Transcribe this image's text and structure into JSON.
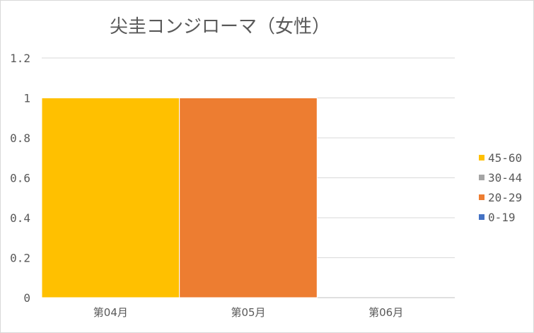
{
  "chart_data": {
    "type": "bar",
    "title": "尖圭コンジローマ（女性）",
    "categories": [
      "第04月",
      "第05月",
      "第06月"
    ],
    "series": [
      {
        "name": "45-60",
        "color": "#ffc000",
        "values": [
          1,
          0,
          0
        ]
      },
      {
        "name": "30-44",
        "color": "#a5a5a5",
        "values": [
          0,
          0,
          0
        ]
      },
      {
        "name": "20-29",
        "color": "#ed7d31",
        "values": [
          0,
          1,
          0
        ]
      },
      {
        "name": "0-19",
        "color": "#4472c4",
        "values": [
          0,
          0,
          0
        ]
      }
    ],
    "stacked": true,
    "ylim": [
      0,
      1.2
    ],
    "yticks": [
      "0",
      "0.2",
      "0.4",
      "0.6",
      "0.8",
      "1",
      "1.2"
    ],
    "grid": true,
    "legend_position": "right"
  }
}
